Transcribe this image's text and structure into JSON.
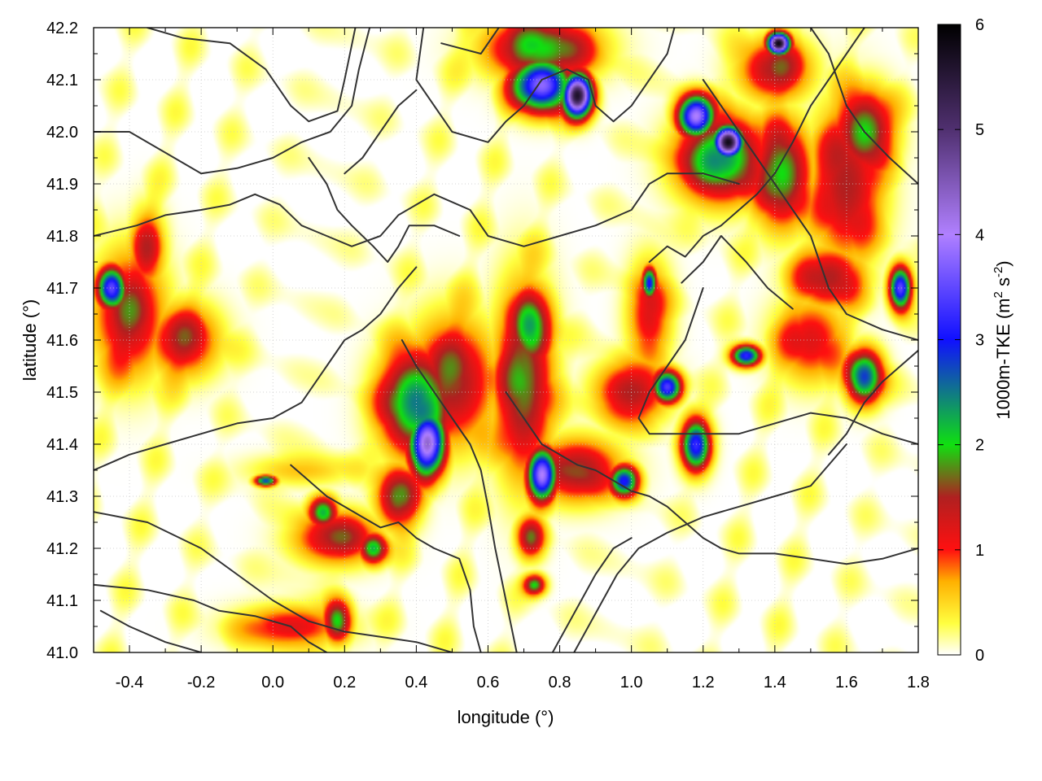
{
  "chart_data": {
    "type": "heatmap",
    "title": "",
    "xlabel": "longitude (°)",
    "ylabel": "latitude (°)",
    "colorbar_label": "1000m-TKE (m² s⁻²)",
    "colorbar_label_parts": {
      "prefix": "1000m-TKE (m",
      "sup1": "2",
      "mid": " s",
      "sup2": "-2",
      "suffix": ")"
    },
    "xlim": [
      -0.5,
      1.8
    ],
    "ylim": [
      41.0,
      42.2
    ],
    "zlim": [
      0,
      6
    ],
    "x_ticks": [
      "-0.4",
      "-0.2",
      "0.0",
      "0.2",
      "0.4",
      "0.6",
      "0.8",
      "1.0",
      "1.2",
      "1.4",
      "1.6",
      "1.8"
    ],
    "y_ticks": [
      "41.0",
      "41.1",
      "41.2",
      "41.3",
      "41.4",
      "41.5",
      "41.6",
      "41.7",
      "41.8",
      "41.9",
      "42.0",
      "42.1",
      "42.2"
    ],
    "z_ticks": [
      "0",
      "1",
      "2",
      "3",
      "4",
      "5",
      "6"
    ],
    "grid": true,
    "colormap": [
      {
        "v": 0.0,
        "color": "#ffffff"
      },
      {
        "v": 0.3,
        "color": "#ffff40"
      },
      {
        "v": 0.7,
        "color": "#ffb000"
      },
      {
        "v": 1.0,
        "color": "#ff1010"
      },
      {
        "v": 1.5,
        "color": "#b02020"
      },
      {
        "v": 2.0,
        "color": "#10e010"
      },
      {
        "v": 3.0,
        "color": "#1010ff"
      },
      {
        "v": 4.0,
        "color": "#b080ff"
      },
      {
        "v": 5.0,
        "color": "#503070"
      },
      {
        "v": 6.0,
        "color": "#000000"
      }
    ],
    "tke_hotspots": [
      {
        "lon": 0.43,
        "lat": 41.4,
        "value": 4.2,
        "rlon": 0.05,
        "rlat": 0.06
      },
      {
        "lon": 0.4,
        "lat": 41.48,
        "value": 2.5,
        "rlon": 0.1,
        "rlat": 0.1
      },
      {
        "lon": 0.5,
        "lat": 41.52,
        "value": 1.6,
        "rlon": 0.12,
        "rlat": 0.12
      },
      {
        "lon": 0.72,
        "lat": 41.62,
        "value": 2.2,
        "rlon": 0.06,
        "rlat": 0.08
      },
      {
        "lon": 0.7,
        "lat": 41.52,
        "value": 1.8,
        "rlon": 0.08,
        "rlat": 0.18
      },
      {
        "lon": 0.75,
        "lat": 41.34,
        "value": 3.8,
        "rlon": 0.04,
        "rlat": 0.05
      },
      {
        "lon": 0.85,
        "lat": 41.35,
        "value": 1.6,
        "rlon": 0.12,
        "rlat": 0.06
      },
      {
        "lon": 1.1,
        "lat": 41.51,
        "value": 3.4,
        "rlon": 0.04,
        "rlat": 0.03
      },
      {
        "lon": 1.0,
        "lat": 41.5,
        "value": 1.5,
        "rlon": 0.1,
        "rlat": 0.06
      },
      {
        "lon": 1.18,
        "lat": 41.4,
        "value": 3.0,
        "rlon": 0.04,
        "rlat": 0.05
      },
      {
        "lon": 0.98,
        "lat": 41.33,
        "value": 3.0,
        "rlon": 0.04,
        "rlat": 0.03
      },
      {
        "lon": 1.32,
        "lat": 41.57,
        "value": 3.2,
        "rlon": 0.04,
        "rlat": 0.02
      },
      {
        "lon": 0.85,
        "lat": 42.07,
        "value": 5.6,
        "rlon": 0.04,
        "rlat": 0.04
      },
      {
        "lon": 0.75,
        "lat": 42.09,
        "value": 3.8,
        "rlon": 0.08,
        "rlat": 0.05
      },
      {
        "lon": 0.75,
        "lat": 42.16,
        "value": 2.0,
        "rlon": 0.15,
        "rlat": 0.06
      },
      {
        "lon": 1.27,
        "lat": 41.98,
        "value": 5.8,
        "rlon": 0.04,
        "rlat": 0.03
      },
      {
        "lon": 1.18,
        "lat": 42.03,
        "value": 4.0,
        "rlon": 0.05,
        "rlat": 0.04
      },
      {
        "lon": 1.25,
        "lat": 41.95,
        "value": 2.4,
        "rlon": 0.12,
        "rlat": 0.08
      },
      {
        "lon": 1.41,
        "lat": 42.17,
        "value": 5.8,
        "rlon": 0.03,
        "rlat": 0.02
      },
      {
        "lon": 1.4,
        "lat": 42.12,
        "value": 1.5,
        "rlon": 0.1,
        "rlat": 0.06
      },
      {
        "lon": 1.42,
        "lat": 41.92,
        "value": 2.0,
        "rlon": 0.08,
        "rlat": 0.1
      },
      {
        "lon": 1.6,
        "lat": 41.9,
        "value": 1.5,
        "rlon": 0.1,
        "rlat": 0.15
      },
      {
        "lon": 1.65,
        "lat": 42.0,
        "value": 2.0,
        "rlon": 0.08,
        "rlat": 0.08
      },
      {
        "lon": 1.75,
        "lat": 41.7,
        "value": 3.5,
        "rlon": 0.03,
        "rlat": 0.04
      },
      {
        "lon": 1.55,
        "lat": 41.72,
        "value": 1.5,
        "rlon": 0.1,
        "rlat": 0.06
      },
      {
        "lon": 1.65,
        "lat": 41.53,
        "value": 2.8,
        "rlon": 0.05,
        "rlat": 0.05
      },
      {
        "lon": 1.5,
        "lat": 41.6,
        "value": 1.2,
        "rlon": 0.1,
        "rlat": 0.08
      },
      {
        "lon": 1.05,
        "lat": 41.71,
        "value": 3.0,
        "rlon": 0.02,
        "rlat": 0.03
      },
      {
        "lon": 1.05,
        "lat": 41.65,
        "value": 1.2,
        "rlon": 0.06,
        "rlat": 0.1
      },
      {
        "lon": -0.45,
        "lat": 41.7,
        "value": 3.5,
        "rlon": 0.04,
        "rlat": 0.04
      },
      {
        "lon": -0.4,
        "lat": 41.65,
        "value": 1.5,
        "rlon": 0.1,
        "rlat": 0.12
      },
      {
        "lon": -0.25,
        "lat": 41.6,
        "value": 1.4,
        "rlon": 0.1,
        "rlat": 0.07
      },
      {
        "lon": -0.35,
        "lat": 41.77,
        "value": 1.2,
        "rlon": 0.05,
        "rlat": 0.08
      },
      {
        "lon": 0.28,
        "lat": 41.2,
        "value": 2.2,
        "rlon": 0.04,
        "rlat": 0.03
      },
      {
        "lon": 0.18,
        "lat": 41.22,
        "value": 1.5,
        "rlon": 0.12,
        "rlat": 0.05
      },
      {
        "lon": 0.14,
        "lat": 41.27,
        "value": 2.2,
        "rlon": 0.04,
        "rlat": 0.03
      },
      {
        "lon": 0.18,
        "lat": 41.06,
        "value": 2.0,
        "rlon": 0.04,
        "rlat": 0.04
      },
      {
        "lon": 0.05,
        "lat": 41.05,
        "value": 1.2,
        "rlon": 0.15,
        "rlat": 0.04
      },
      {
        "lon": -0.02,
        "lat": 41.33,
        "value": 2.8,
        "rlon": 0.03,
        "rlat": 0.01
      },
      {
        "lon": 0.08,
        "lat": 41.35,
        "value": 0.6,
        "rlon": 0.15,
        "rlat": 0.03
      },
      {
        "lon": 0.72,
        "lat": 41.22,
        "value": 1.5,
        "rlon": 0.04,
        "rlat": 0.04
      },
      {
        "lon": 0.73,
        "lat": 41.13,
        "value": 2.0,
        "rlon": 0.03,
        "rlat": 0.02
      },
      {
        "lon": 0.35,
        "lat": 41.3,
        "value": 1.8,
        "rlon": 0.06,
        "rlat": 0.06
      }
    ],
    "contours": [
      [
        [
          0.27,
          42.2
        ],
        [
          0.24,
          42.12
        ],
        [
          0.22,
          42.05
        ],
        [
          0.16,
          42.0
        ],
        [
          0.08,
          41.98
        ],
        [
          0.0,
          41.95
        ],
        [
          -0.1,
          41.93
        ],
        [
          -0.2,
          41.92
        ],
        [
          -0.3,
          41.96
        ],
        [
          -0.4,
          42.0
        ],
        [
          -0.5,
          42.0
        ]
      ],
      [
        [
          -0.35,
          42.2
        ],
        [
          -0.25,
          42.18
        ],
        [
          -0.12,
          42.17
        ],
        [
          -0.02,
          42.12
        ],
        [
          0.05,
          42.05
        ],
        [
          0.1,
          42.02
        ],
        [
          0.18,
          42.04
        ],
        [
          0.2,
          42.1
        ],
        [
          0.23,
          42.2
        ]
      ],
      [
        [
          -0.5,
          41.8
        ],
        [
          -0.38,
          41.82
        ],
        [
          -0.3,
          41.84
        ],
        [
          -0.2,
          41.85
        ],
        [
          -0.12,
          41.86
        ],
        [
          -0.05,
          41.88
        ],
        [
          0.02,
          41.86
        ],
        [
          0.08,
          41.82
        ],
        [
          0.15,
          41.8
        ],
        [
          0.22,
          41.78
        ],
        [
          0.3,
          41.8
        ],
        [
          0.35,
          41.84
        ],
        [
          0.45,
          41.88
        ],
        [
          0.55,
          41.85
        ],
        [
          0.6,
          41.8
        ],
        [
          0.7,
          41.78
        ],
        [
          0.8,
          41.8
        ],
        [
          0.9,
          41.82
        ],
        [
          1.0,
          41.85
        ],
        [
          1.05,
          41.9
        ],
        [
          1.1,
          41.92
        ],
        [
          1.2,
          41.92
        ],
        [
          1.3,
          41.9
        ]
      ],
      [
        [
          0.47,
          42.17
        ],
        [
          0.58,
          42.15
        ],
        [
          0.63,
          42.2
        ]
      ],
      [
        [
          0.42,
          42.2
        ],
        [
          0.4,
          42.1
        ],
        [
          0.45,
          42.05
        ],
        [
          0.5,
          42.0
        ],
        [
          0.6,
          41.98
        ],
        [
          0.65,
          42.02
        ],
        [
          0.7,
          42.05
        ],
        [
          0.75,
          42.1
        ],
        [
          0.82,
          42.12
        ],
        [
          0.88,
          42.1
        ],
        [
          0.9,
          42.05
        ],
        [
          0.95,
          42.02
        ],
        [
          1.0,
          42.05
        ],
        [
          1.05,
          42.1
        ],
        [
          1.1,
          42.15
        ],
        [
          1.12,
          42.2
        ]
      ],
      [
        [
          -0.5,
          41.35
        ],
        [
          -0.4,
          41.38
        ],
        [
          -0.3,
          41.4
        ],
        [
          -0.2,
          41.42
        ],
        [
          -0.1,
          41.44
        ],
        [
          0.0,
          41.45
        ],
        [
          0.08,
          41.48
        ],
        [
          0.12,
          41.52
        ],
        [
          0.15,
          41.55
        ],
        [
          0.2,
          41.6
        ],
        [
          0.25,
          41.62
        ],
        [
          0.3,
          41.65
        ],
        [
          0.35,
          41.7
        ],
        [
          0.4,
          41.74
        ]
      ],
      [
        [
          -0.5,
          41.27
        ],
        [
          -0.35,
          41.25
        ],
        [
          -0.2,
          41.2
        ],
        [
          -0.1,
          41.15
        ],
        [
          0.0,
          41.1
        ],
        [
          0.1,
          41.06
        ],
        [
          0.2,
          41.04
        ],
        [
          0.3,
          41.03
        ],
        [
          0.4,
          41.02
        ],
        [
          0.5,
          41.0
        ]
      ],
      [
        [
          -0.5,
          41.13
        ],
        [
          -0.35,
          41.12
        ],
        [
          -0.22,
          41.1
        ],
        [
          -0.15,
          41.08
        ],
        [
          -0.05,
          41.07
        ],
        [
          0.05,
          41.05
        ],
        [
          0.1,
          41.02
        ],
        [
          0.15,
          41.0
        ]
      ],
      [
        [
          -0.48,
          41.08
        ],
        [
          -0.4,
          41.05
        ],
        [
          -0.3,
          41.02
        ],
        [
          -0.2,
          41.0
        ]
      ],
      [
        [
          0.05,
          41.36
        ],
        [
          0.1,
          41.33
        ],
        [
          0.15,
          41.3
        ],
        [
          0.2,
          41.28
        ],
        [
          0.25,
          41.26
        ],
        [
          0.3,
          41.24
        ],
        [
          0.35,
          41.25
        ],
        [
          0.4,
          41.22
        ],
        [
          0.45,
          41.2
        ],
        [
          0.52,
          41.18
        ],
        [
          0.55,
          41.12
        ],
        [
          0.56,
          41.05
        ],
        [
          0.58,
          41.0
        ]
      ],
      [
        [
          0.36,
          41.6
        ],
        [
          0.4,
          41.55
        ],
        [
          0.45,
          41.5
        ],
        [
          0.5,
          41.45
        ],
        [
          0.55,
          41.4
        ],
        [
          0.58,
          41.35
        ],
        [
          0.6,
          41.28
        ],
        [
          0.62,
          41.2
        ],
        [
          0.65,
          41.1
        ],
        [
          0.68,
          41.0
        ]
      ],
      [
        [
          0.65,
          41.5
        ],
        [
          0.7,
          41.45
        ],
        [
          0.75,
          41.4
        ],
        [
          0.8,
          41.38
        ],
        [
          0.85,
          41.36
        ],
        [
          0.9,
          41.35
        ],
        [
          0.95,
          41.33
        ],
        [
          1.0,
          41.31
        ],
        [
          1.05,
          41.3
        ],
        [
          1.1,
          41.28
        ],
        [
          1.15,
          41.25
        ],
        [
          1.2,
          41.22
        ],
        [
          1.25,
          41.2
        ],
        [
          1.3,
          41.19
        ],
        [
          1.4,
          41.19
        ],
        [
          1.5,
          41.18
        ],
        [
          1.6,
          41.17
        ],
        [
          1.7,
          41.18
        ],
        [
          1.8,
          41.2
        ]
      ],
      [
        [
          0.84,
          41.0
        ],
        [
          0.88,
          41.05
        ],
        [
          0.92,
          41.1
        ],
        [
          0.96,
          41.15
        ],
        [
          1.02,
          41.2
        ],
        [
          1.1,
          41.23
        ],
        [
          1.2,
          41.26
        ],
        [
          1.3,
          41.28
        ],
        [
          1.4,
          41.3
        ],
        [
          1.5,
          41.32
        ],
        [
          1.55,
          41.36
        ],
        [
          1.6,
          41.4
        ]
      ],
      [
        [
          0.78,
          41.0
        ],
        [
          0.82,
          41.05
        ],
        [
          0.86,
          41.1
        ],
        [
          0.9,
          41.15
        ],
        [
          0.95,
          41.2
        ],
        [
          1.0,
          41.22
        ]
      ],
      [
        [
          1.2,
          41.7
        ],
        [
          1.15,
          41.6
        ],
        [
          1.1,
          41.55
        ],
        [
          1.05,
          41.5
        ],
        [
          1.02,
          41.45
        ],
        [
          1.05,
          41.42
        ],
        [
          1.1,
          41.42
        ],
        [
          1.2,
          41.42
        ],
        [
          1.3,
          41.42
        ],
        [
          1.4,
          41.44
        ],
        [
          1.5,
          41.46
        ],
        [
          1.6,
          41.45
        ],
        [
          1.7,
          41.42
        ],
        [
          1.8,
          41.4
        ]
      ],
      [
        [
          1.2,
          42.1
        ],
        [
          1.25,
          42.05
        ],
        [
          1.3,
          42.0
        ],
        [
          1.35,
          41.95
        ],
        [
          1.4,
          41.9
        ],
        [
          1.45,
          41.85
        ],
        [
          1.5,
          41.8
        ],
        [
          1.55,
          41.7
        ],
        [
          1.6,
          41.65
        ],
        [
          1.7,
          41.62
        ],
        [
          1.8,
          41.6
        ]
      ],
      [
        [
          1.05,
          41.75
        ],
        [
          1.1,
          41.78
        ],
        [
          1.15,
          41.76
        ],
        [
          1.2,
          41.8
        ],
        [
          1.25,
          41.82
        ],
        [
          1.3,
          41.85
        ],
        [
          1.35,
          41.88
        ],
        [
          1.4,
          41.92
        ],
        [
          1.45,
          41.98
        ],
        [
          1.5,
          42.05
        ],
        [
          1.55,
          42.1
        ],
        [
          1.6,
          42.15
        ],
        [
          1.65,
          42.2
        ]
      ],
      [
        [
          0.1,
          41.95
        ],
        [
          0.15,
          41.9
        ],
        [
          0.18,
          41.85
        ],
        [
          0.22,
          41.82
        ],
        [
          0.28,
          41.78
        ],
        [
          0.32,
          41.75
        ],
        [
          0.35,
          41.78
        ],
        [
          0.38,
          41.82
        ],
        [
          0.45,
          41.82
        ],
        [
          0.52,
          41.8
        ]
      ],
      [
        [
          0.2,
          41.92
        ],
        [
          0.25,
          41.95
        ],
        [
          0.3,
          42.0
        ],
        [
          0.35,
          42.05
        ],
        [
          0.4,
          42.08
        ]
      ],
      [
        [
          1.14,
          41.71
        ],
        [
          1.2,
          41.75
        ],
        [
          1.25,
          41.8
        ],
        [
          1.32,
          41.75
        ],
        [
          1.38,
          41.7
        ],
        [
          1.45,
          41.66
        ]
      ],
      [
        [
          1.5,
          42.2
        ],
        [
          1.55,
          42.15
        ],
        [
          1.6,
          42.05
        ],
        [
          1.65,
          42.0
        ],
        [
          1.72,
          41.95
        ],
        [
          1.8,
          41.9
        ]
      ],
      [
        [
          1.55,
          41.38
        ],
        [
          1.6,
          41.42
        ],
        [
          1.65,
          41.48
        ],
        [
          1.7,
          41.52
        ],
        [
          1.75,
          41.55
        ],
        [
          1.8,
          41.58
        ]
      ]
    ]
  }
}
